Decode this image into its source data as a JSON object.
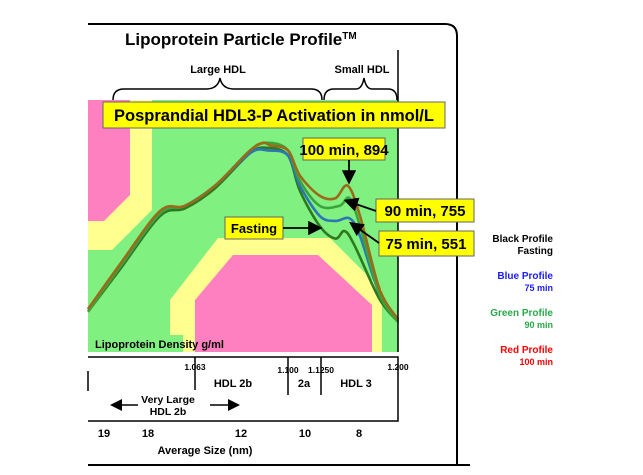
{
  "title": "Lipoprotein Particle Profile",
  "trademark": "TM",
  "brace_labels": {
    "large": "Large HDL",
    "small": "Small HDL"
  },
  "banner": "Posprandial HDL3-P Activation in nmol/L",
  "callouts": {
    "c100": "100 min, 894",
    "c90": "90 min, 755",
    "c75": "75 min, 551",
    "fasting": "Fasting"
  },
  "legend": [
    {
      "title": "Black Profile",
      "sub": "Fasting",
      "color": "#000000"
    },
    {
      "title": "Blue Profile",
      "sub": "75 min",
      "color": "#1a1aff"
    },
    {
      "title": "Green Profile",
      "sub": "90 min",
      "color": "#2aa84a"
    },
    {
      "title": "Red Profile",
      "sub": "100 min",
      "color": "#ff0000"
    }
  ],
  "colors": {
    "green_bg": "#80f080",
    "pink": "#ff80c0",
    "yellow": "#ffff90",
    "callout": "#ffff00"
  },
  "lower_axis": {
    "density_label": "Lipoprotein Density g/ml",
    "density_ticks": [
      "1.063",
      "1.100",
      "1.1250",
      "1.200"
    ],
    "regions": {
      "hdl2b": "HDL 2b",
      "hdl2a": "2a",
      "hdl3": "HDL 3",
      "very_large_1": "Very Large",
      "very_large_2": "HDL 2b"
    },
    "size_ticks": [
      "19",
      "18",
      "12",
      "10",
      "8"
    ],
    "size_label": "Average Size (nm)"
  },
  "chart_data": {
    "type": "line",
    "title": "Lipoprotein Particle Profile",
    "xlabel": "Lipoprotein Density g/ml",
    "ylabel": "",
    "xlim": [
      1.02,
      1.2
    ],
    "ylim": [
      0,
      1
    ],
    "x_ticks": [
      1.063,
      1.1,
      1.125,
      1.2
    ],
    "series": [
      {
        "name": "Fasting",
        "color": "#2d7a1e",
        "x": [
          1.02,
          1.033,
          1.049,
          1.059,
          1.071,
          1.085,
          1.092,
          1.1,
          1.109,
          1.124,
          1.139,
          1.148,
          1.158,
          1.182,
          1.2
        ],
        "y": [
          0.16,
          0.33,
          0.54,
          0.57,
          0.65,
          0.79,
          0.81,
          0.78,
          0.64,
          0.5,
          0.45,
          0.48,
          0.42,
          0.21,
          0.12
        ]
      },
      {
        "name": "75 min",
        "color": "#2e75b6",
        "x": [
          1.02,
          1.033,
          1.049,
          1.059,
          1.071,
          1.085,
          1.092,
          1.1,
          1.109,
          1.124,
          1.139,
          1.153,
          1.163,
          1.182,
          1.2
        ],
        "y": [
          0.17,
          0.34,
          0.55,
          0.58,
          0.66,
          0.79,
          0.8,
          0.78,
          0.66,
          0.54,
          0.52,
          0.53,
          0.46,
          0.23,
          0.13
        ]
      },
      {
        "name": "90 min",
        "color": "#3aa53a",
        "x": [
          1.02,
          1.033,
          1.049,
          1.059,
          1.071,
          1.085,
          1.092,
          1.1,
          1.109,
          1.124,
          1.143,
          1.153,
          1.163,
          1.182,
          1.2
        ],
        "y": [
          0.16,
          0.34,
          0.55,
          0.58,
          0.66,
          0.8,
          0.83,
          0.8,
          0.68,
          0.58,
          0.58,
          0.61,
          0.5,
          0.23,
          0.12
        ]
      },
      {
        "name": "100 min",
        "color": "#9b6a1a",
        "x": [
          1.02,
          1.033,
          1.049,
          1.059,
          1.071,
          1.085,
          1.09,
          1.093,
          1.1,
          1.109,
          1.124,
          1.139,
          1.151,
          1.163,
          1.182,
          1.2
        ],
        "y": [
          0.17,
          0.35,
          0.56,
          0.58,
          0.66,
          0.8,
          0.83,
          0.82,
          0.8,
          0.7,
          0.62,
          0.61,
          0.66,
          0.54,
          0.25,
          0.13
        ]
      }
    ],
    "annotations": [
      "100 min, 894",
      "90 min, 755",
      "75 min, 551",
      "Fasting"
    ]
  }
}
